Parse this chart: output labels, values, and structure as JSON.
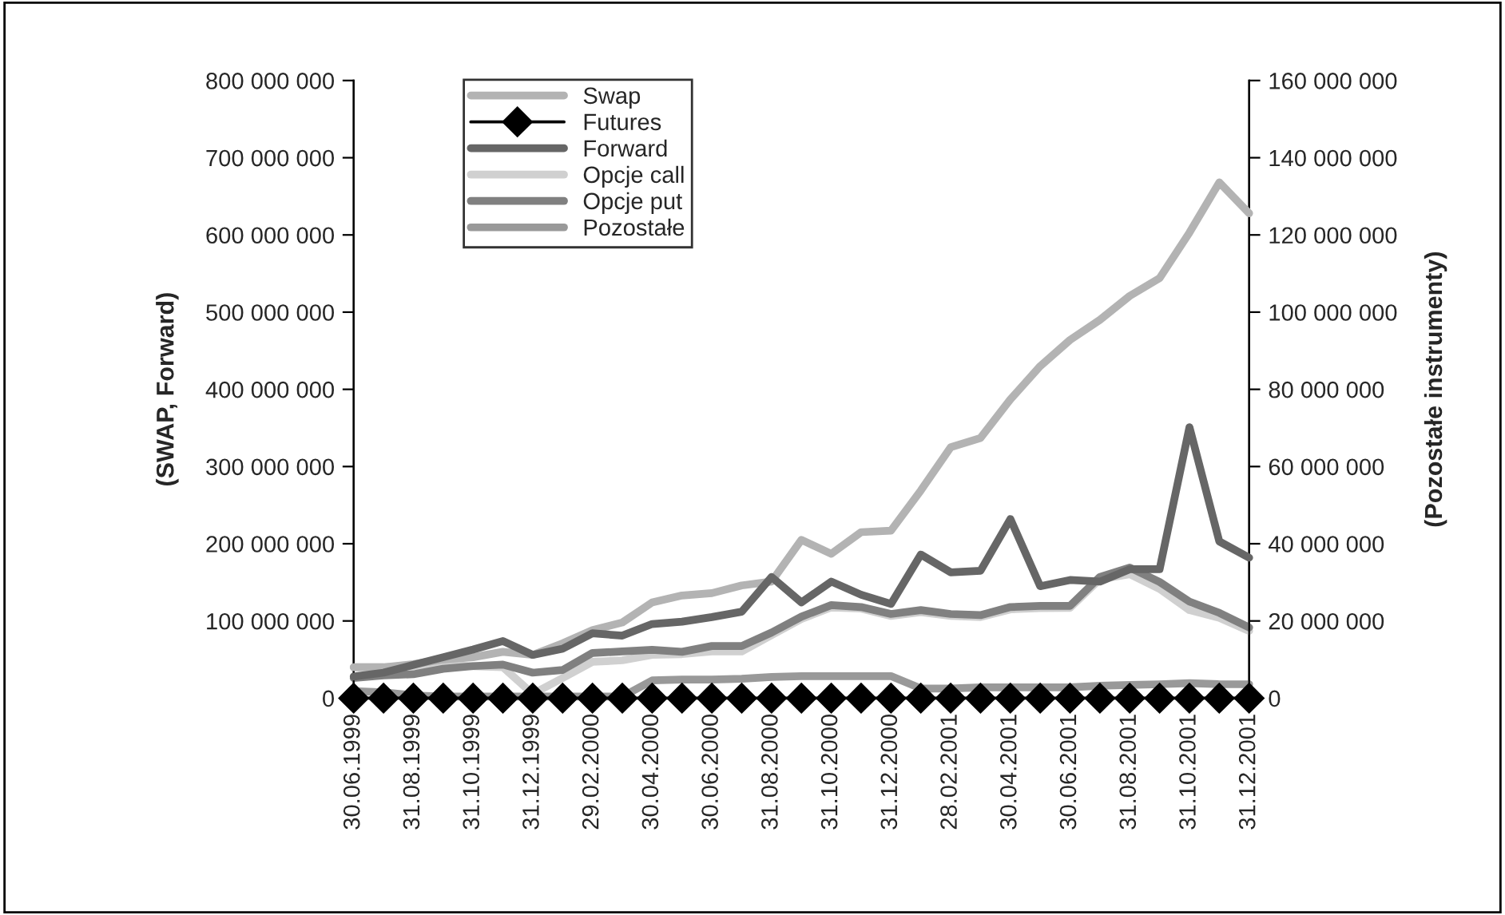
{
  "chart_data": {
    "type": "line",
    "ylabel": "(SWAP, Forward)",
    "y2label": "(Pozostałe instrumenty)",
    "categories": [
      "30.06.1999",
      null,
      "31.08.1999",
      null,
      "31.10.1999",
      null,
      "31.12.1999",
      null,
      "29.02.2000",
      null,
      "30.04.2000",
      null,
      "30.06.2000",
      null,
      "31.08.2000",
      null,
      "31.10.2000",
      null,
      "31.12.2000",
      null,
      "28.02.2001",
      null,
      "30.04.2001",
      null,
      "30.06.2001",
      null,
      "31.08.2001",
      null,
      "31.10.2001",
      null,
      "31.12.2001"
    ],
    "series": [
      {
        "name": "Swap",
        "color": "#b3b3b3",
        "marker": "none",
        "values": [
          40000000,
          40000000,
          44000000,
          50000000,
          53000000,
          60000000,
          56000000,
          71000000,
          88000000,
          98000000,
          124000000,
          133000000,
          136000000,
          146000000,
          151000000,
          205000000,
          187000000,
          215000000,
          217000000,
          269000000,
          325000000,
          337000000,
          387000000,
          430000000,
          464000000,
          490000000,
          521000000,
          544000000,
          603000000,
          668000000,
          628000000
        ]
      },
      {
        "name": "Futures",
        "color": "#000000",
        "marker": "diamond",
        "axis": "y2",
        "values": [
          0,
          0,
          0,
          0,
          0,
          0,
          0,
          0,
          0,
          0,
          0,
          0,
          0,
          0,
          0,
          0,
          0,
          0,
          0,
          0,
          0,
          0,
          0,
          0,
          0,
          0,
          0,
          0,
          0,
          0,
          0
        ]
      },
      {
        "name": "Forward",
        "color": "#666666",
        "marker": "none",
        "values": [
          28000000,
          33000000,
          43000000,
          53000000,
          63000000,
          74000000,
          56000000,
          64000000,
          84000000,
          81000000,
          96000000,
          99000000,
          105000000,
          112000000,
          157000000,
          124000000,
          151000000,
          134000000,
          122000000,
          186000000,
          163000000,
          165000000,
          232000000,
          145000000,
          153000000,
          151000000,
          167000000,
          167000000,
          351000000,
          203000000,
          182000000
        ]
      },
      {
        "name": "Opcje call",
        "color": "#d0d0d0",
        "marker": "none",
        "axis": "y2",
        "values": [
          8000000,
          8000000,
          8300000,
          8600000,
          8300000,
          8000000,
          1100000,
          5200000,
          9400000,
          9800000,
          11200000,
          11400000,
          12100000,
          12100000,
          16300000,
          20500000,
          23500000,
          23200000,
          21300000,
          22300000,
          21300000,
          21000000,
          23000000,
          23300000,
          23400000,
          30800000,
          32100000,
          28300000,
          22800000,
          20800000,
          17400000
        ]
      },
      {
        "name": "Opcje put",
        "color": "#808080",
        "marker": "none",
        "axis": "y2",
        "values": [
          5200000,
          5900000,
          6200000,
          7600000,
          8300000,
          8700000,
          6600000,
          7300000,
          11700000,
          12100000,
          12500000,
          12000000,
          13500000,
          13500000,
          17000000,
          21100000,
          24100000,
          23600000,
          21800000,
          22800000,
          21800000,
          21500000,
          23600000,
          23900000,
          23900000,
          31400000,
          33800000,
          30100000,
          25000000,
          22100000,
          18300000
        ]
      },
      {
        "name": "Pozostałe",
        "color": "#999999",
        "marker": "none",
        "axis": "y2",
        "values": [
          1800000,
          1500000,
          700000,
          400000,
          400000,
          400000,
          400000,
          400000,
          400000,
          400000,
          4600000,
          4800000,
          4800000,
          5000000,
          5500000,
          5700000,
          5700000,
          5700000,
          5700000,
          2500000,
          2500000,
          2800000,
          2800000,
          2800000,
          2800000,
          3200000,
          3400000,
          3600000,
          3900000,
          3600000,
          3600000
        ]
      }
    ],
    "ylim": [
      0,
      800000000
    ],
    "yticks": [
      0,
      {
        "value": 100000000,
        "label": "100 000 000"
      },
      {
        "value": 200000000,
        "label": "200 000 000"
      },
      {
        "value": 300000000,
        "label": "300 000 000"
      },
      {
        "value": 400000000,
        "label": "400 000 000"
      },
      {
        "value": 500000000,
        "label": "500 000 000"
      },
      {
        "value": 600000000,
        "label": "600 000 000"
      },
      {
        "value": 700000000,
        "label": "700 000 000"
      },
      {
        "value": 800000000,
        "label": "800 000 000"
      }
    ],
    "y2lim": [
      0,
      160000000
    ],
    "y2ticks": [
      0,
      {
        "value": 20000000,
        "label": "20 000 000"
      },
      {
        "value": 40000000,
        "label": "40 000 000"
      },
      {
        "value": 60000000,
        "label": "60 000 000"
      },
      {
        "value": 80000000,
        "label": "80 000 000"
      },
      {
        "value": 100000000,
        "label": "100 000 000"
      },
      {
        "value": 120000000,
        "label": "120 000 000"
      },
      {
        "value": 140000000,
        "label": "140 000 000"
      },
      {
        "value": 160000000,
        "label": "160 000 000"
      }
    ],
    "grid": false,
    "legend": "top left",
    "line_style": "solid"
  }
}
